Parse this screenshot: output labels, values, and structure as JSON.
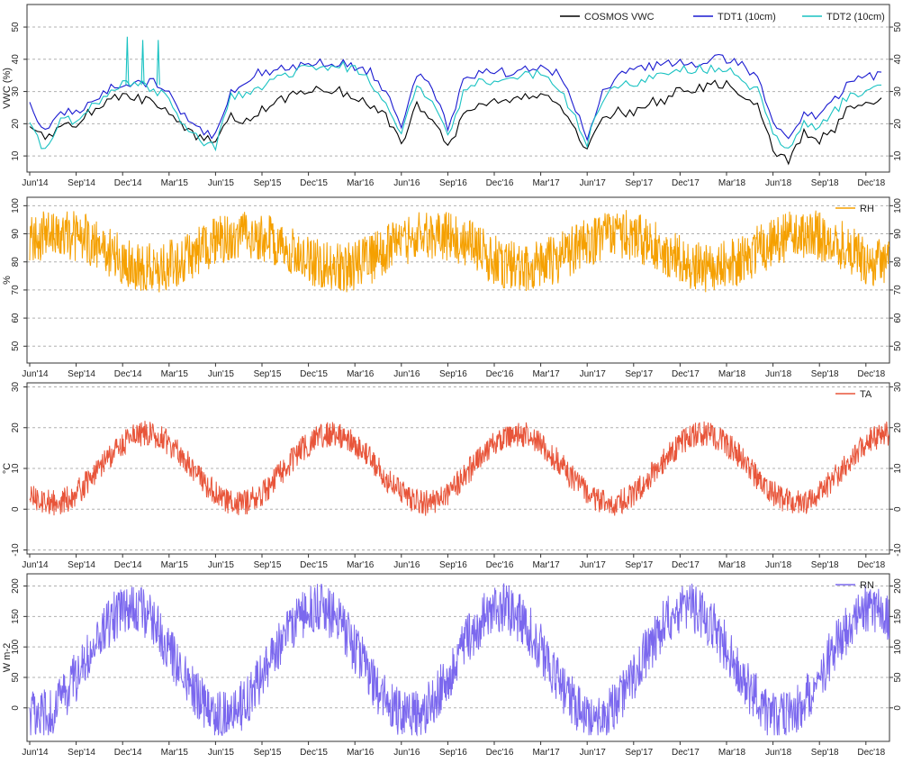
{
  "chart_data": [
    {
      "type": "line",
      "ylabel": "VWC (%)",
      "ylim": [
        5,
        57
      ],
      "yticks": [
        10,
        20,
        30,
        40,
        50
      ],
      "grid": true,
      "legend_position": "top-right",
      "x_tick_labels": [
        "Jun'14",
        "Sep'14",
        "Dec'14",
        "Mar'15",
        "Jun'15",
        "Sep'15",
        "Dec'15",
        "Mar'16",
        "Jun'16",
        "Sep'16",
        "Dec'16",
        "Mar'17",
        "Jun'17",
        "Sep'17",
        "Dec'17",
        "Mar'18",
        "Jun'18",
        "Sep'18",
        "Dec'18"
      ],
      "x": [
        "Jun'14",
        "Jul'14",
        "Aug'14",
        "Sep'14",
        "Oct'14",
        "Nov'14",
        "Dec'14",
        "Jan'15",
        "Feb'15",
        "Mar'15",
        "Apr'15",
        "May'15",
        "Jun'15",
        "Jul'15",
        "Aug'15",
        "Sep'15",
        "Oct'15",
        "Nov'15",
        "Dec'15",
        "Jan'16",
        "Feb'16",
        "Mar'16",
        "Apr'16",
        "May'16",
        "Jun'16",
        "Jul'16",
        "Aug'16",
        "Sep'16",
        "Oct'16",
        "Nov'16",
        "Dec'16",
        "Jan'17",
        "Feb'17",
        "Mar'17",
        "Apr'17",
        "May'17",
        "Jun'17",
        "Jul'17",
        "Aug'17",
        "Sep'17",
        "Oct'17",
        "Nov'17",
        "Dec'17",
        "Jan'18",
        "Feb'18",
        "Mar'18",
        "Apr'18",
        "May'18",
        "Jun'18",
        "Jul'18",
        "Aug'18",
        "Sep'18",
        "Oct'18",
        "Nov'18",
        "Dec'18",
        "Jan'19"
      ],
      "series": [
        {
          "name": "COSMOS VWC",
          "color": "#000000",
          "values": [
            20,
            15,
            20,
            20,
            24,
            27,
            29,
            28,
            26,
            24,
            18,
            16,
            14,
            22,
            21,
            24,
            27,
            29,
            30,
            31,
            30,
            28,
            26,
            22,
            14,
            26,
            22,
            13,
            22,
            26,
            27,
            26,
            28,
            29,
            27,
            20,
            12,
            22,
            24,
            23,
            27,
            27,
            31,
            31,
            32,
            32,
            29,
            26,
            12,
            9,
            17,
            15,
            18,
            26,
            27,
            28
          ]
        },
        {
          "name": "TDT1 (10cm)",
          "color": "#1a1ad0",
          "values": [
            26,
            18,
            24,
            23,
            27,
            30,
            33,
            32,
            33,
            30,
            22,
            18,
            16,
            30,
            34,
            36,
            37,
            38,
            38,
            39,
            39,
            38,
            36,
            30,
            20,
            35,
            32,
            18,
            33,
            36,
            36,
            36,
            37,
            38,
            36,
            28,
            16,
            30,
            35,
            36,
            38,
            38,
            39,
            39,
            40,
            40,
            38,
            35,
            22,
            14,
            24,
            22,
            28,
            33,
            34,
            36
          ]
        },
        {
          "name": "TDT2 (10cm)",
          "color": "#19c2c2",
          "values": [
            20,
            11,
            22,
            21,
            25,
            29,
            33,
            33,
            30,
            28,
            19,
            15,
            13,
            28,
            30,
            32,
            34,
            36,
            37,
            38,
            38,
            37,
            33,
            25,
            17,
            32,
            27,
            17,
            29,
            33,
            33,
            33,
            35,
            36,
            32,
            24,
            14,
            28,
            32,
            32,
            35,
            36,
            37,
            37,
            37,
            37,
            34,
            30,
            18,
            11,
            20,
            19,
            24,
            29,
            30,
            32
          ]
        }
      ],
      "spikes": [
        {
          "x": "Dec'14",
          "y": 47
        },
        {
          "x": "Jan'15",
          "y": 46
        },
        {
          "x": "Feb'15",
          "y": 46
        }
      ]
    },
    {
      "type": "line",
      "ylabel": "%",
      "ylim": [
        44,
        103
      ],
      "yticks": [
        50,
        60,
        70,
        80,
        90,
        100
      ],
      "grid": true,
      "legend_position": "top-right",
      "x_tick_labels": [
        "Jun'14",
        "Sep'14",
        "Dec'14",
        "Mar'15",
        "Jun'15",
        "Sep'15",
        "Dec'15",
        "Mar'16",
        "Jun'16",
        "Sep'16",
        "Dec'16",
        "Mar'17",
        "Jun'17",
        "Sep'17",
        "Dec'17",
        "Mar'18",
        "Jun'18",
        "Sep'18",
        "Dec'18"
      ],
      "series": [
        {
          "name": "RH",
          "color": "#f5a000",
          "base": 84,
          "amplitude": 6,
          "phase_months": 2,
          "noise": 9,
          "min": 57,
          "max": 100
        }
      ]
    },
    {
      "type": "line",
      "ylabel": "°C",
      "ylim": [
        -11,
        31
      ],
      "yticks": [
        -10,
        0,
        10,
        20,
        30
      ],
      "grid": true,
      "legend_position": "top-right",
      "x_tick_labels": [
        "Jun'14",
        "Sep'14",
        "Dec'14",
        "Mar'15",
        "Jun'15",
        "Sep'15",
        "Dec'15",
        "Mar'16",
        "Jun'16",
        "Sep'16",
        "Dec'16",
        "Mar'17",
        "Jun'17",
        "Sep'17",
        "Dec'17",
        "Mar'18",
        "Jun'18",
        "Sep'18",
        "Dec'18"
      ],
      "series": [
        {
          "name": "TA",
          "color": "#e8553a",
          "base": 10,
          "amplitude": 8.5,
          "phase_months": 7.5,
          "noise": 3.2,
          "min": -6,
          "max": 25
        }
      ]
    },
    {
      "type": "line",
      "ylabel": "W m-2",
      "ylim": [
        -55,
        220
      ],
      "yticks": [
        0,
        50,
        100,
        150,
        200
      ],
      "grid": true,
      "legend_position": "top-right",
      "x_tick_labels": [
        "Jun'14",
        "Sep'14",
        "Dec'14",
        "Mar'15",
        "Jun'15",
        "Sep'15",
        "Dec'15",
        "Mar'16",
        "Jun'16",
        "Sep'16",
        "Dec'16",
        "Mar'17",
        "Jun'17",
        "Sep'17",
        "Dec'17",
        "Mar'18",
        "Jun'18",
        "Sep'18",
        "Dec'18"
      ],
      "series": [
        {
          "name": "RN",
          "color": "#7b68ee",
          "base": 75,
          "amplitude": 88,
          "phase_months": 6.5,
          "noise": 42,
          "min": -45,
          "max": 215
        }
      ]
    }
  ]
}
